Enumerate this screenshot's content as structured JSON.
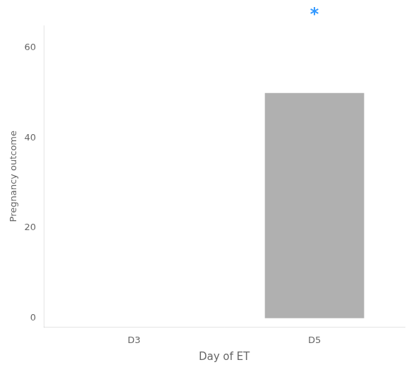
{
  "chart_data": {
    "type": "bar",
    "categories": [
      "D3",
      "D5"
    ],
    "values": [
      0,
      50
    ],
    "color": "#b0b0b0",
    "xlabel": "Day of ET",
    "ylabel": "Pregnancy outcome",
    "ylim": [
      -2,
      65
    ],
    "yticks": [
      0,
      20,
      40,
      60
    ],
    "grid": false,
    "annotations": [
      {
        "text": "*",
        "x": "D5",
        "color": "#3399ff"
      }
    ]
  }
}
